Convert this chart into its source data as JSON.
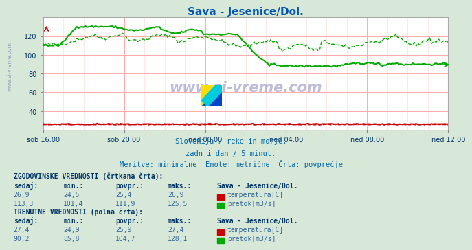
{
  "title": "Sava - Jesenice/Dol.",
  "title_color": "#0055aa",
  "bg_color": "#d8e8d8",
  "plot_bg_color": "#ffffff",
  "xlabel_ticks": [
    "sob 16:00",
    "sob 20:00",
    "ned 00:00",
    "ned 04:00",
    "ned 08:00",
    "ned 12:00"
  ],
  "ylim": [
    20,
    140
  ],
  "yticks": [
    40,
    60,
    80,
    100,
    120
  ],
  "grid_color": "#ffaaaa",
  "subtitle1": "Slovenija / reke in morje.",
  "subtitle2": "zadnji dan / 5 minut.",
  "subtitle3": "Meritve: minimalne  Enote: metrične  Črta: povprečje",
  "subtitle_color": "#0066aa",
  "watermark": "www.si-vreme.com",
  "table_text_color": "#336699",
  "table_bold_color": "#003366",
  "hist_label": "ZGODOVINSKE VREDNOSTI (črtkana črta):",
  "curr_label": "TRENUTNE VREDNOSTI (polna črta):",
  "col_headers": [
    "sedaj:",
    "min.:",
    "povpr.:",
    "maks.:"
  ],
  "station_label": "Sava - Jesenice/Dol.",
  "hist_temp": [
    26.9,
    24.5,
    25.4,
    26.9
  ],
  "hist_flow": [
    113.3,
    101.4,
    111.9,
    125.5
  ],
  "curr_temp": [
    27.4,
    24.9,
    25.9,
    27.4
  ],
  "curr_flow": [
    90.2,
    85.8,
    104.7,
    128.1
  ],
  "temp_color": "#cc0000",
  "flow_color": "#00aa00",
  "temp_label": "temperatura[C]",
  "flow_label": "pretok[m3/s]",
  "n_points": 241,
  "tick_positions": [
    0,
    48,
    96,
    144,
    192,
    240
  ]
}
